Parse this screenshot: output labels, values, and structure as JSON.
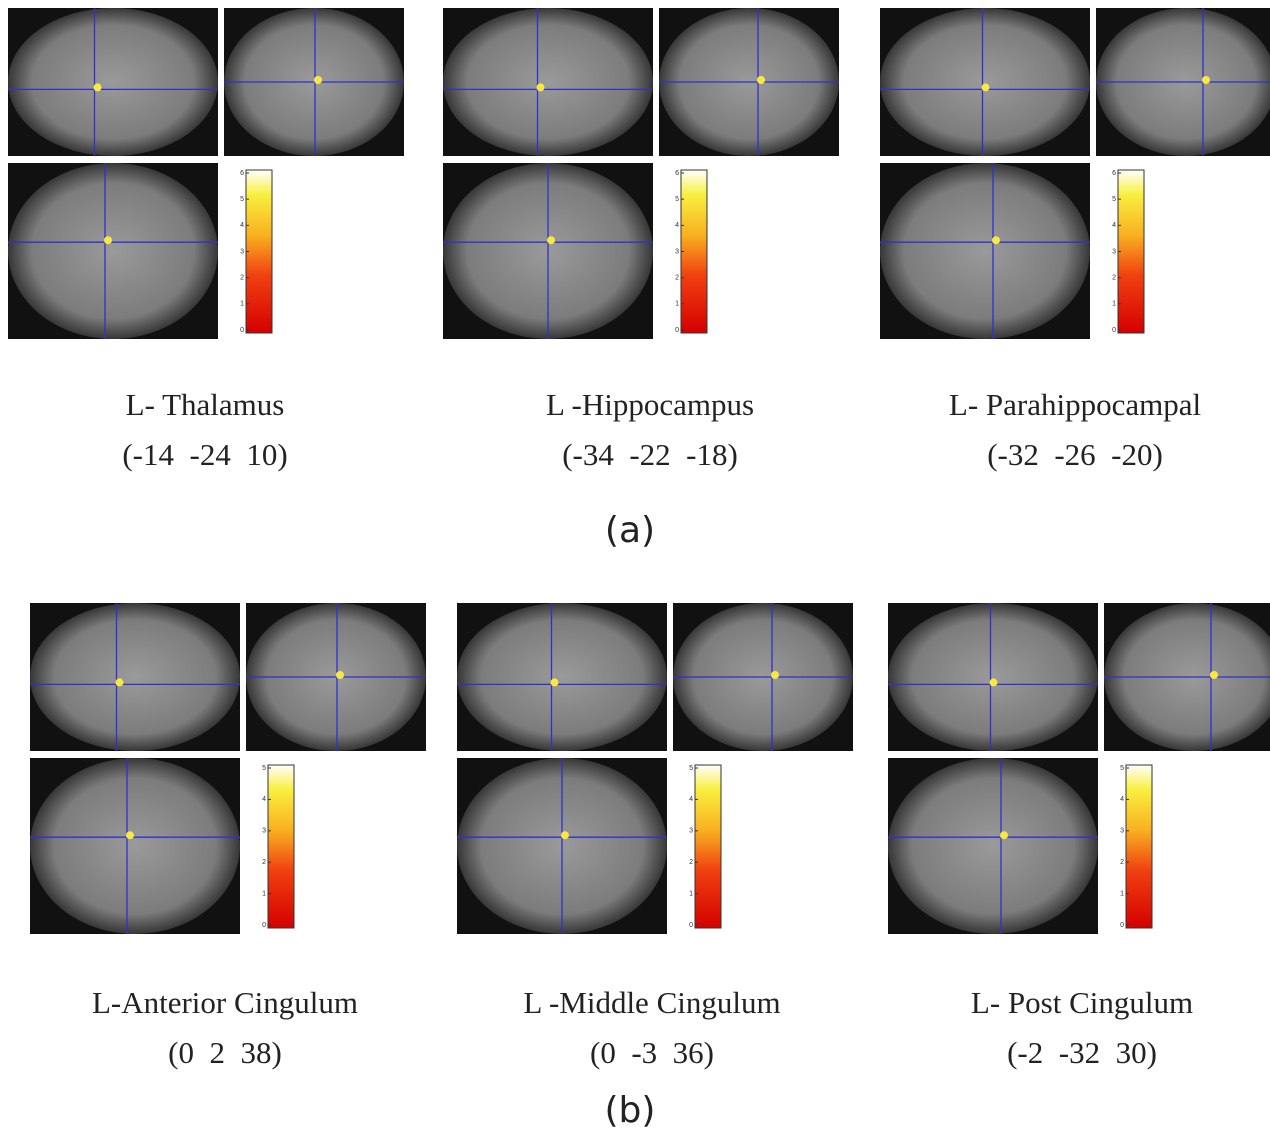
{
  "figure": {
    "groups": [
      {
        "label": "(a)",
        "panels": [
          {
            "region": "L- Thalamus",
            "coords": "(-14  -24  10)",
            "colorbar_ticks": [
              0,
              1,
              2,
              3,
              4,
              5,
              6
            ]
          },
          {
            "region": "L -Hippocampus",
            "coords": "(-34  -22  -18)",
            "colorbar_ticks": [
              0,
              1,
              2,
              3,
              4,
              5,
              6
            ]
          },
          {
            "region": "L- Parahippocampal",
            "coords": "(-32  -26  -20)",
            "colorbar_ticks": [
              0,
              1,
              2,
              3,
              4,
              5,
              6
            ]
          }
        ]
      },
      {
        "label": "(b)",
        "panels": [
          {
            "region": "L-Anterior Cingulum",
            "coords": "(0  2  38)",
            "colorbar_ticks": [
              0,
              1,
              2,
              3,
              4,
              5
            ]
          },
          {
            "region": "L -Middle Cingulum",
            "coords": "(0  -3  36)",
            "colorbar_ticks": [
              0,
              1,
              2,
              3,
              4,
              5
            ]
          },
          {
            "region": "L- Post Cingulum",
            "coords": "(-2  -32  30)",
            "colorbar_ticks": [
              0,
              1,
              2,
              3,
              4,
              5
            ]
          }
        ]
      }
    ]
  }
}
